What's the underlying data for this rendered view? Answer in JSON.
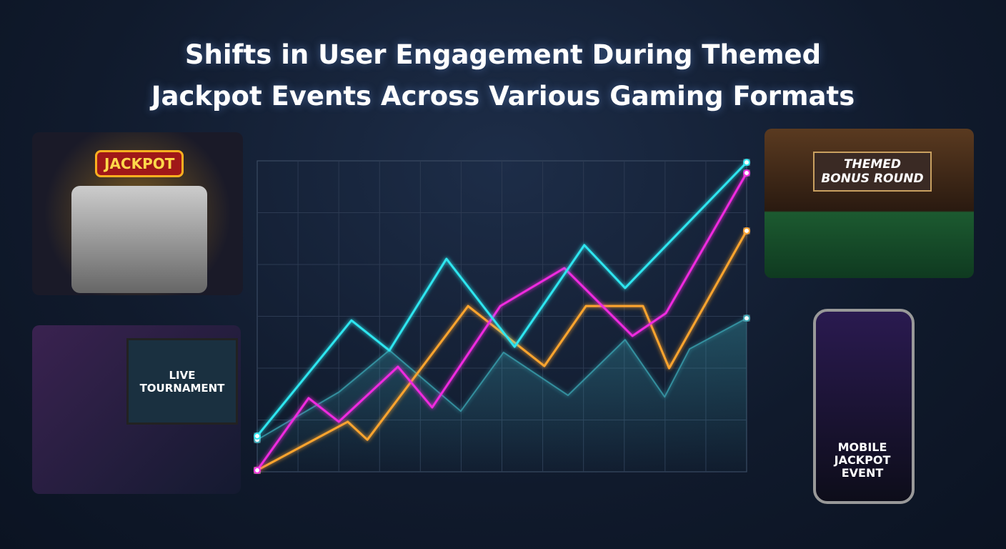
{
  "chart_data": {
    "type": "line",
    "title": "Shifts in User Engagement During Themed Jackpot Events Across Various Gaming Formats",
    "xlim": [
      0,
      12
    ],
    "ylim": [
      0,
      100
    ],
    "grid": true,
    "series": [
      {
        "color": "#3aa7b5",
        "area": true,
        "x": [
          0,
          2.01,
          3.24,
          4.99,
          6.04,
          7.62,
          9.02,
          9.99,
          10.6,
          12
        ],
        "values": [
          10.3,
          25.7,
          39.1,
          19.5,
          38.4,
          24.6,
          42.5,
          24.1,
          39.5,
          49.4
        ]
      },
      {
        "color": "#ffa52e",
        "x": [
          0,
          2.22,
          2.7,
          5.17,
          7.04,
          8.06,
          9.46,
          10.1,
          12
        ],
        "values": [
          0.5,
          16.1,
          10.3,
          53.3,
          34,
          53.3,
          53.3,
          33.3,
          77.5
        ]
      },
      {
        "color": "#f02ce0",
        "x": [
          0,
          1.26,
          2,
          3.45,
          4.29,
          5.96,
          7.53,
          9.2,
          10.02,
          12
        ],
        "values": [
          0.5,
          23.7,
          16.1,
          33.8,
          20.7,
          53.3,
          65.5,
          43.7,
          51,
          96.1
        ]
      },
      {
        "color": "#2ee6f0",
        "x": [
          0,
          2.31,
          3.24,
          4.64,
          6.31,
          8.02,
          9.02,
          12
        ],
        "values": [
          11.5,
          48.7,
          39,
          68.5,
          40.2,
          72.9,
          59.1,
          99.5
        ]
      }
    ]
  },
  "illustrations": {
    "slot": "JACKPOT",
    "poker": "THEMED BONUS ROUND",
    "esports": "LIVE TOURNAMENT",
    "mobile": "MOBILE JACKPOT EVENT"
  }
}
